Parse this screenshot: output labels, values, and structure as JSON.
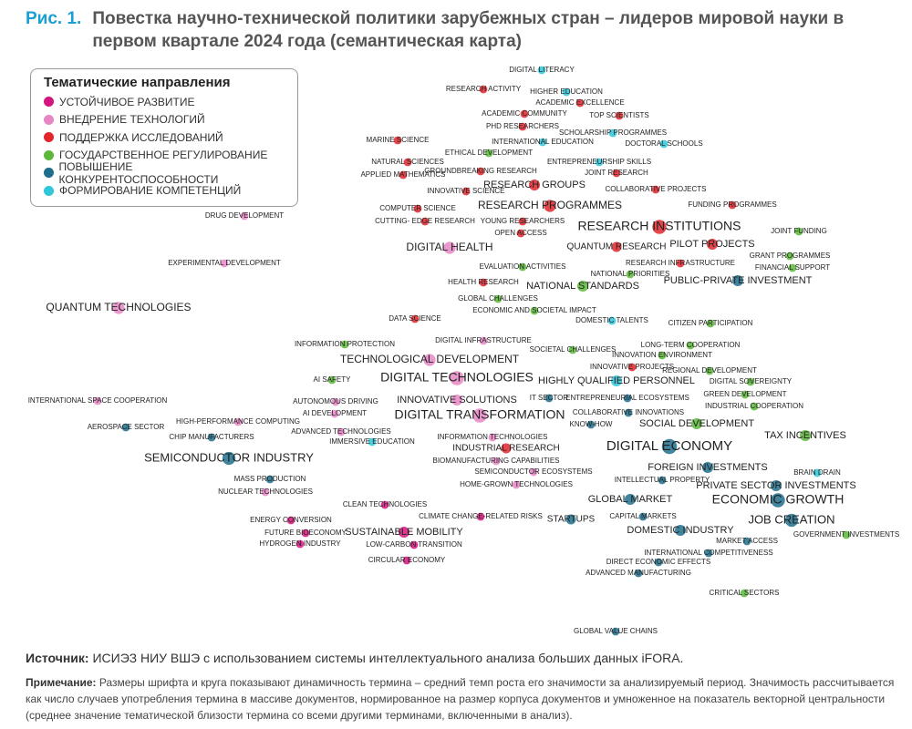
{
  "figure_label": "Рис. 1.",
  "title": "Повестка научно-технической политики зарубежных стран – лидеров мировой науки в первом квартале 2024 года (семантическая карта)",
  "legend": {
    "title": "Тематические направления",
    "items": [
      {
        "name": "УСТОЙЧИВОЕ РАЗВИТИЕ",
        "color": "#d6147e"
      },
      {
        "name": "ВНЕДРЕНИЕ ТЕХНОЛОГИЙ",
        "color": "#e686c4"
      },
      {
        "name": "ПОДДЕРЖКА ИССЛЕДОВАНИЙ",
        "color": "#e2262b"
      },
      {
        "name": "ГОСУДАРСТВЕННОЕ РЕГУЛИРОВАНИЕ",
        "color": "#5cb83a"
      },
      {
        "name": "ПОВЫШЕНИЕ КОНКУРЕНТОСПОСОБНОСТИ",
        "color": "#1f6e8c"
      },
      {
        "name": "ФОРМИРОВАНИЕ КОМПЕТЕНЦИЙ",
        "color": "#2fc7d9"
      }
    ]
  },
  "nodes": [
    {
      "label": "DIGITAL LITERACY",
      "group": 5
    },
    {
      "label": "RESEARCH ACTIVITY",
      "group": 2
    },
    {
      "label": "HIGHER EDUCATION",
      "group": 5
    },
    {
      "label": "ACADEMIC EXCELLENCE",
      "group": 2
    },
    {
      "label": "ACADEMIC COMMUNITY",
      "group": 2
    },
    {
      "label": "TOP SCIENTISTS",
      "group": 2
    },
    {
      "label": "PHD RESEARCHERS",
      "group": 2
    },
    {
      "label": "SCHOLARSHIP PROGRAMMES",
      "group": 5
    },
    {
      "label": "MARINE SCIENCE",
      "group": 2
    },
    {
      "label": "INTERNATIONAL EDUCATION",
      "group": 5
    },
    {
      "label": "DOCTORAL SCHOOLS",
      "group": 5
    },
    {
      "label": "ETHICAL DEVELOPMENT",
      "group": 3
    },
    {
      "label": "NATURAL SCIENCES",
      "group": 2
    },
    {
      "label": "ENTREPRENEURSHIP SKILLS",
      "group": 5
    },
    {
      "label": "GROUNDBREAKING RESEARCH",
      "group": 2
    },
    {
      "label": "APPLIED MATHEMATICS",
      "group": 2
    },
    {
      "label": "JOINT RESEARCH",
      "group": 2
    },
    {
      "label": "RESEARCH GROUPS",
      "group": 2
    },
    {
      "label": "INNOVATIVE SCIENCE",
      "group": 2
    },
    {
      "label": "COLLABORATIVE PROJECTS",
      "group": 2
    },
    {
      "label": "RESEARCH PROGRAMMES",
      "group": 2
    },
    {
      "label": "FUNDING PROGRAMMES",
      "group": 2
    },
    {
      "label": "COMPUTER SCIENCE",
      "group": 2
    },
    {
      "label": "CUTTING- EDGE RESEARCH",
      "group": 2
    },
    {
      "label": "YOUNG RESEARCHERS",
      "group": 2
    },
    {
      "label": "RESEARCH INSTITUTIONS",
      "group": 2
    },
    {
      "label": "OPEN ACCESS",
      "group": 2
    },
    {
      "label": "JOINT FUNDING",
      "group": 3
    },
    {
      "label": "DRUG DEVELOPMENT",
      "group": 1
    },
    {
      "label": "DIGITAL HEALTH",
      "group": 1
    },
    {
      "label": "QUANTUM RESEARCH",
      "group": 2
    },
    {
      "label": "PILOT PROJECTS",
      "group": 2
    },
    {
      "label": "GRANT PROGRAMMES",
      "group": 3
    },
    {
      "label": "EXPERIMENTAL DEVELOPMENT",
      "group": 1
    },
    {
      "label": "RESEARCH INFRASTRUCTURE",
      "group": 2
    },
    {
      "label": "FINANCIAL SUPPORT",
      "group": 3
    },
    {
      "label": "EVALUATION ACTIVITIES",
      "group": 3
    },
    {
      "label": "NATIONAL PRIORITIES",
      "group": 3
    },
    {
      "label": "HEALTH RESEARCH",
      "group": 2
    },
    {
      "label": "NATIONAL STANDARDS",
      "group": 3
    },
    {
      "label": "PUBLIC-PRIVATE INVESTMENT",
      "group": 4
    },
    {
      "label": "QUANTUM TECHNOLOGIES",
      "group": 1
    },
    {
      "label": "GLOBAL CHALLENGES",
      "group": 3
    },
    {
      "label": "ECONOMIC AND SOCIETAL IMPACT",
      "group": 3
    },
    {
      "label": "DATA SCIENCE",
      "group": 2
    },
    {
      "label": "DOMESTIC TALENTS",
      "group": 5
    },
    {
      "label": "CITIZEN PARTICIPATION",
      "group": 3
    },
    {
      "label": "DIGITAL INFRASTRUCTURE",
      "group": 1
    },
    {
      "label": "INFORMATION PROTECTION",
      "group": 3
    },
    {
      "label": "LONG-TERM COOPERATION",
      "group": 3
    },
    {
      "label": "SOCIETAL CHALLENGES",
      "group": 3
    },
    {
      "label": "INNOVATION ENVIRONMENT",
      "group": 3
    },
    {
      "label": "TECHNOLOGICAL DEVELOPMENT",
      "group": 1
    },
    {
      "label": "INNOVATIVE PROJECTS",
      "group": 2
    },
    {
      "label": "REGIONAL DEVELOPMENT",
      "group": 3
    },
    {
      "label": "DIGITAL TECHNOLOGIES",
      "group": 1
    },
    {
      "label": "HIGHLY QUALIFIED PERSONNEL",
      "group": 5
    },
    {
      "label": "AI SAFETY",
      "group": 3
    },
    {
      "label": "DIGITAL SOVEREIGNTY",
      "group": 3
    },
    {
      "label": "INTERNATIONAL SPACE COOPERATION",
      "group": 1
    },
    {
      "label": "IT SECTOR",
      "group": 4
    },
    {
      "label": "ENTREPRENEURIAL ECOSYSTEMS",
      "group": 4
    },
    {
      "label": "GREEN DEVELOPMENT",
      "group": 3
    },
    {
      "label": "INNOVATIVE SOLUTIONS",
      "group": 1
    },
    {
      "label": "AUTONOMOUS DRIVING",
      "group": 1
    },
    {
      "label": "INDUSTRIAL COOPERATION",
      "group": 3
    },
    {
      "label": "AI DEVELOPMENT",
      "group": 1
    },
    {
      "label": "COLLABORATIVE INNOVATIONS",
      "group": 4
    },
    {
      "label": "DIGITAL TRANSFORMATION",
      "group": 1
    },
    {
      "label": "AEROSPACE SECTOR",
      "group": 4
    },
    {
      "label": "HIGH-PERFORMANCE COMPUTING",
      "group": 1
    },
    {
      "label": "KNOW-HOW",
      "group": 4
    },
    {
      "label": "SOCIAL DEVELOPMENT",
      "group": 3
    },
    {
      "label": "ADVANCED TECHNOLOGIES",
      "group": 1
    },
    {
      "label": "CHIP MANUFACTURERS",
      "group": 4
    },
    {
      "label": "TAX INCENTIVES",
      "group": 3
    },
    {
      "label": "INFORMATION TECHNOLOGIES",
      "group": 1
    },
    {
      "label": "IMMERSIVE EDUCATION",
      "group": 5
    },
    {
      "label": "INDUSTRIAL RESEARCH",
      "group": 2
    },
    {
      "label": "DIGITAL ECONOMY",
      "group": 4
    },
    {
      "label": "SEMICONDUCTOR INDUSTRY",
      "group": 4
    },
    {
      "label": "BIOMANUFACTURING CAPABILITIES",
      "group": 1
    },
    {
      "label": "FOREIGN INVESTMENTS",
      "group": 4
    },
    {
      "label": "SEMICONDUCTOR ECOSYSTEMS",
      "group": 1
    },
    {
      "label": "BRAIN DRAIN",
      "group": 5
    },
    {
      "label": "INTELLECTUAL PROPERTY",
      "group": 4
    },
    {
      "label": "MASS PRODUCTION",
      "group": 4
    },
    {
      "label": "HOME-GROWN TECHNOLOGIES",
      "group": 1
    },
    {
      "label": "PRIVATE SECTOR INVESTMENTS",
      "group": 4
    },
    {
      "label": "NUCLEAR TECHNOLOGIES",
      "group": 1
    },
    {
      "label": "ECONOMIC GROWTH",
      "group": 4
    },
    {
      "label": "GLOBAL MARKET",
      "group": 4
    },
    {
      "label": "CLEAN TECHNOLOGIES",
      "group": 0
    },
    {
      "label": "CLIMATE CHANGE-RELATED RISKS",
      "group": 0
    },
    {
      "label": "STARTUPS",
      "group": 4
    },
    {
      "label": "CAPITAL MARKETS",
      "group": 4
    },
    {
      "label": "JOB CREATION",
      "group": 4
    },
    {
      "label": "ENERGY CONVERSION",
      "group": 0
    },
    {
      "label": "SUSTAINABLE MOBILITY",
      "group": 0
    },
    {
      "label": "DOMESTIC INDUSTRY",
      "group": 4
    },
    {
      "label": "FUTURE BIOECONOMY",
      "group": 0
    },
    {
      "label": "GOVERNMENT INVESTMENTS",
      "group": 3
    },
    {
      "label": "HYDROGEN INDUSTRY",
      "group": 0
    },
    {
      "label": "LOW-CARBON TRANSITION",
      "group": 0
    },
    {
      "label": "MARKET ACCESS",
      "group": 4
    },
    {
      "label": "INTERNATIONAL COMPETITIVENESS",
      "group": 4
    },
    {
      "label": "CIRCULAR ECONOMY",
      "group": 0
    },
    {
      "label": "DIRECT ECONOMIC EFFECTS",
      "group": 4
    },
    {
      "label": "ADVANCED MANUFACTURING",
      "group": 4
    },
    {
      "label": "CRITICAL SECTORS",
      "group": 3
    },
    {
      "label": "GLOBAL VALUE CHAINS",
      "group": 4
    }
  ],
  "source": {
    "label": "Источник:",
    "text": "ИСИЭЗ НИУ ВШЭ с использованием системы интеллектуального анализа больших данных iFORA."
  },
  "note": {
    "label": "Примечание:",
    "text": "Размеры шрифта и круга показывают динамичность термина – средний темп роста его значимости за анализируемый период. Значимость рассчитывается как число случаев употребления термина в массиве документов, нормированное на размер корпуса документов и умноженное на показатель векторной центральности (среднее значение тематической близости термина со всеми другими терминами, включенными в анализ)."
  }
}
